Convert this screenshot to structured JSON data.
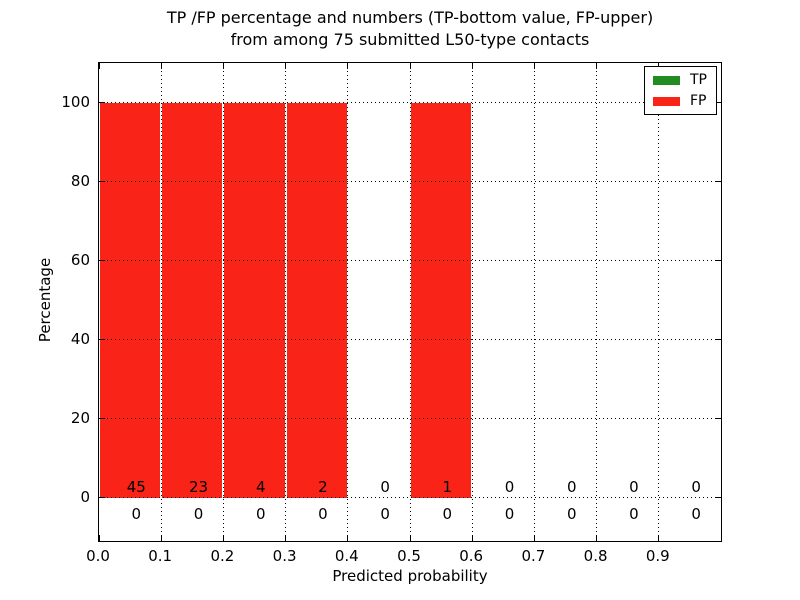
{
  "title": {
    "line1": "TP /FP percentage and numbers (TP-bottom value, FP-upper)",
    "line2": "from among 75 submitted L50-type contacts"
  },
  "axes": {
    "xlabel": "Predicted probability",
    "ylabel": "Percentage",
    "xtick_labels": [
      "0.0",
      "0.1",
      "0.2",
      "0.3",
      "0.4",
      "0.5",
      "0.6",
      "0.7",
      "0.8",
      "0.9"
    ],
    "ytick_labels": [
      "0",
      "20",
      "40",
      "60",
      "80",
      "100"
    ]
  },
  "legend": {
    "items": [
      {
        "label": "TP",
        "color": "#228b22"
      },
      {
        "label": "FP",
        "color": "#f92318"
      }
    ]
  },
  "colors": {
    "tp": "#228b22",
    "fp": "#f92318",
    "axis": "#000000",
    "background": "#ffffff"
  },
  "chart_data": {
    "type": "bar",
    "title": "TP /FP percentage and numbers (TP-bottom value, FP-upper) from among 75 submitted L50-type contacts",
    "xlabel": "Predicted probability",
    "ylabel": "Percentage",
    "xlim": [
      0.0,
      1.0
    ],
    "ylim": [
      -11,
      110
    ],
    "grid": true,
    "legend_position": "upper right",
    "bin_starts": [
      0.0,
      0.1,
      0.2,
      0.3,
      0.4,
      0.5,
      0.6,
      0.7,
      0.8,
      0.9
    ],
    "bin_width": 0.1,
    "xticks": [
      0.0,
      0.1,
      0.2,
      0.3,
      0.4,
      0.5,
      0.6,
      0.7,
      0.8,
      0.9
    ],
    "yticks": [
      0,
      20,
      40,
      60,
      80,
      100
    ],
    "series": [
      {
        "name": "TP",
        "color": "#228b22",
        "percentages": [
          0,
          0,
          0,
          0,
          0,
          0,
          0,
          0,
          0,
          0
        ],
        "counts": [
          0,
          0,
          0,
          0,
          0,
          0,
          0,
          0,
          0,
          0
        ]
      },
      {
        "name": "FP",
        "color": "#f92318",
        "percentages": [
          100,
          100,
          100,
          100,
          0,
          100,
          0,
          0,
          0,
          0
        ],
        "counts": [
          45,
          23,
          4,
          2,
          0,
          1,
          0,
          0,
          0,
          0
        ]
      }
    ],
    "annotation_note": "FP counts printed just above the 0 line, TP counts just below"
  }
}
